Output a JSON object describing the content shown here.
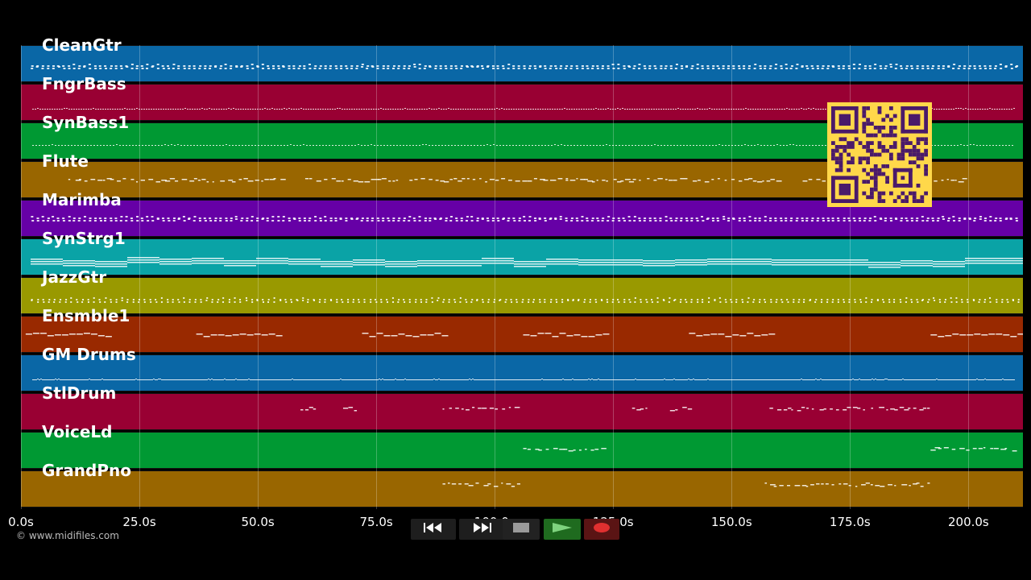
{
  "tracks": [
    {
      "name": "CleanGtr",
      "color": "#0a67a6"
    },
    {
      "name": "FngrBass",
      "color": "#990033"
    },
    {
      "name": "SynBass1",
      "color": "#009933"
    },
    {
      "name": "Flute",
      "color": "#996600"
    },
    {
      "name": "Marimba",
      "color": "#6600a6"
    },
    {
      "name": "SynStrg1",
      "color": "#0aa3a6"
    },
    {
      "name": "JazzGtr",
      "color": "#999900"
    },
    {
      "name": "Ensmble1",
      "color": "#992900"
    },
    {
      "name": "GM Drums",
      "color": "#0a67a6"
    },
    {
      "name": "StlDrum",
      "color": "#990033"
    },
    {
      "name": "VoiceLd",
      "color": "#009933"
    },
    {
      "name": "GrandPno",
      "color": "#996600"
    }
  ],
  "timeline": {
    "ticks": [
      "0.0s",
      "25.0s",
      "50.0s",
      "75.0s",
      "100.0s",
      "125.0s",
      "150.0s",
      "175.0s",
      "200.0s"
    ],
    "tick_values": [
      0,
      25,
      50,
      75,
      100,
      125,
      150,
      175,
      200
    ],
    "max_time": 211.5
  },
  "copyright": "© www.midifiles.com",
  "transport": {
    "rewind_icon": "rewind-icon",
    "fast_forward_icon": "fast-forward-icon",
    "stop_icon": "stop-icon",
    "play_icon": "play-icon",
    "record_icon": "record-icon",
    "colors": {
      "button_bg": "#222222",
      "play_bg": "#1f6b1f",
      "play_fg": "#7ed37e",
      "record_bg": "#5a1414",
      "record_fg": "#e03030",
      "stop_fg": "#9a9a9a"
    }
  },
  "qr_code": {
    "icon": "qr-code-icon",
    "bg": "#ffd84a",
    "fg": "#4a1a6a"
  }
}
